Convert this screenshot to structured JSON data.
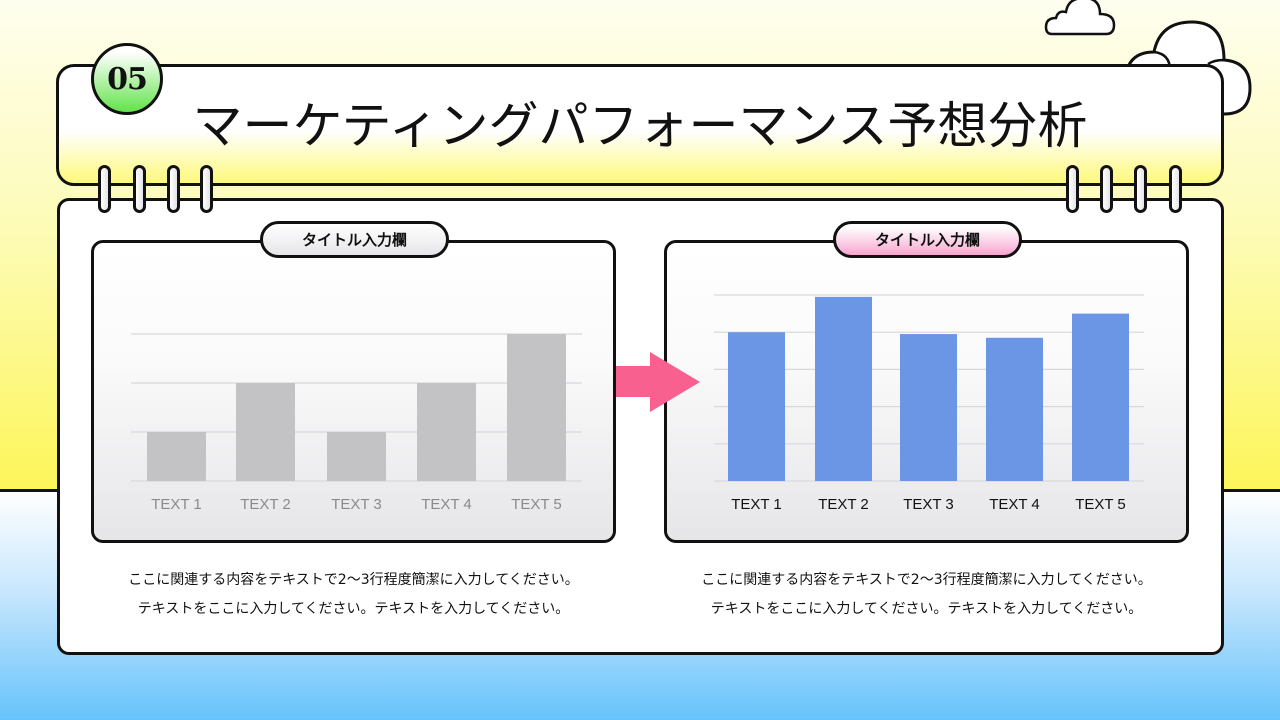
{
  "slide": {
    "number": "05",
    "title": "マーケティングパフォーマンス予想分析"
  },
  "colors": {
    "bar_before": "#c3c2c4",
    "bar_after": "#6b96e5",
    "arrow": "#f7608f",
    "label_before": "#8a8a8a",
    "label_after": "#111111",
    "badge_green": "#62e34a",
    "title_pill_pink": "#f6a6cf"
  },
  "panels": [
    {
      "title": "タイトル入力欄",
      "description_lines": [
        "ここに関連する内容をテキストで2〜3行程度簡潔に入力してください。",
        "テキストをここに入力してください。テキストを入力してください。"
      ]
    },
    {
      "title": "タイトル入力欄",
      "description_lines": [
        "ここに関連する内容をテキストで2〜3行程度簡潔に入力してください。",
        "テキストをここに入力してください。テキストを入力してください。"
      ]
    }
  ],
  "chart_data": [
    {
      "type": "bar",
      "title": "タイトル入力欄",
      "categories": [
        "TEXT 1",
        "TEXT 2",
        "TEXT 3",
        "TEXT 4",
        "TEXT 5"
      ],
      "values": [
        1,
        2,
        1,
        2,
        3
      ],
      "ylim": [
        0,
        3
      ],
      "grid": true,
      "gridlines": 3,
      "xlabel": "",
      "ylabel": "",
      "color": "#c3c2c4"
    },
    {
      "type": "bar",
      "title": "タイトル入力欄",
      "categories": [
        "TEXT 1",
        "TEXT 2",
        "TEXT 3",
        "TEXT 4",
        "TEXT 5"
      ],
      "values": [
        4.0,
        4.95,
        3.95,
        3.85,
        4.5
      ],
      "ylim": [
        0,
        5
      ],
      "grid": true,
      "gridlines": 5,
      "xlabel": "",
      "ylabel": "",
      "color": "#6b96e5"
    }
  ]
}
